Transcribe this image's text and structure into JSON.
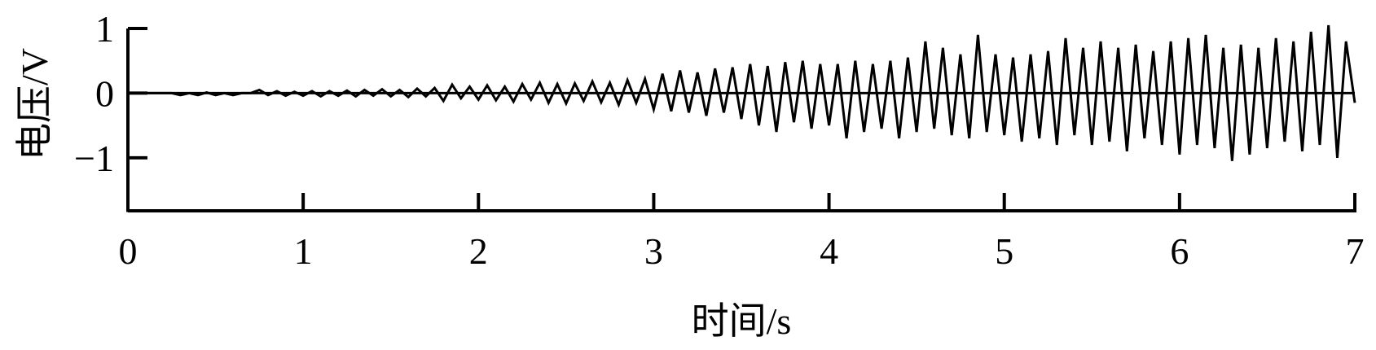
{
  "chart_data": {
    "type": "line",
    "title": "",
    "xlabel": "时间/s",
    "ylabel": "电压/V",
    "xlim": [
      0,
      7
    ],
    "ylim": [
      -1.82,
      1
    ],
    "xticks": [
      0,
      1,
      2,
      3,
      4,
      5,
      6,
      7
    ],
    "xtick_labels": [
      "0",
      "1",
      "2",
      "3",
      "4",
      "5",
      "6",
      "7"
    ],
    "yticks": [
      1,
      0,
      -1
    ],
    "ytick_labels": [
      "1",
      "0",
      "−1"
    ],
    "grid": false,
    "legend": "none",
    "line_color": "#000000",
    "series": [
      {
        "t_start": 0,
        "t_step": 0.05,
        "values": [
          0,
          0,
          0,
          0,
          0,
          0,
          -0.03,
          0,
          -0.03,
          0.01,
          -0.03,
          0,
          -0.03,
          0,
          0,
          0.05,
          -0.03,
          0.03,
          -0.04,
          0.02,
          -0.04,
          0.03,
          -0.05,
          0.03,
          -0.04,
          0.04,
          -0.05,
          0.05,
          -0.04,
          0.06,
          -0.05,
          0.05,
          -0.06,
          0.07,
          -0.05,
          0.08,
          -0.12,
          0.13,
          -0.08,
          0.1,
          -0.1,
          0.12,
          -0.11,
          0.1,
          -0.13,
          0.14,
          -0.1,
          0.16,
          -0.15,
          0.14,
          -0.16,
          0.15,
          -0.12,
          0.18,
          -0.14,
          0.16,
          -0.18,
          0.2,
          -0.15,
          0.22,
          -0.25,
          0.3,
          -0.28,
          0.35,
          -0.3,
          0.32,
          -0.35,
          0.38,
          -0.3,
          0.4,
          -0.4,
          0.45,
          -0.5,
          0.42,
          -0.6,
          0.48,
          -0.45,
          0.5,
          -0.55,
          0.45,
          -0.5,
          0.45,
          -0.7,
          0.5,
          -0.6,
          0.45,
          -0.55,
          0.5,
          -0.7,
          0.55,
          -0.6,
          0.8,
          -0.55,
          0.7,
          -0.65,
          0.6,
          -0.7,
          0.9,
          -0.6,
          0.6,
          -0.65,
          0.55,
          -0.75,
          0.6,
          -0.7,
          0.65,
          -0.8,
          0.85,
          -0.65,
          0.7,
          -0.8,
          0.8,
          -0.75,
          0.7,
          -0.9,
          0.75,
          -0.7,
          0.65,
          -0.8,
          0.8,
          -0.95,
          0.85,
          -0.8,
          0.9,
          -0.85,
          0.7,
          -1.05,
          0.75,
          -0.95,
          0.7,
          -0.85,
          0.85,
          -0.75,
          0.8,
          -0.9,
          0.95,
          -0.8,
          1.05,
          -1.0,
          0.8,
          -0.15
        ]
      }
    ]
  }
}
